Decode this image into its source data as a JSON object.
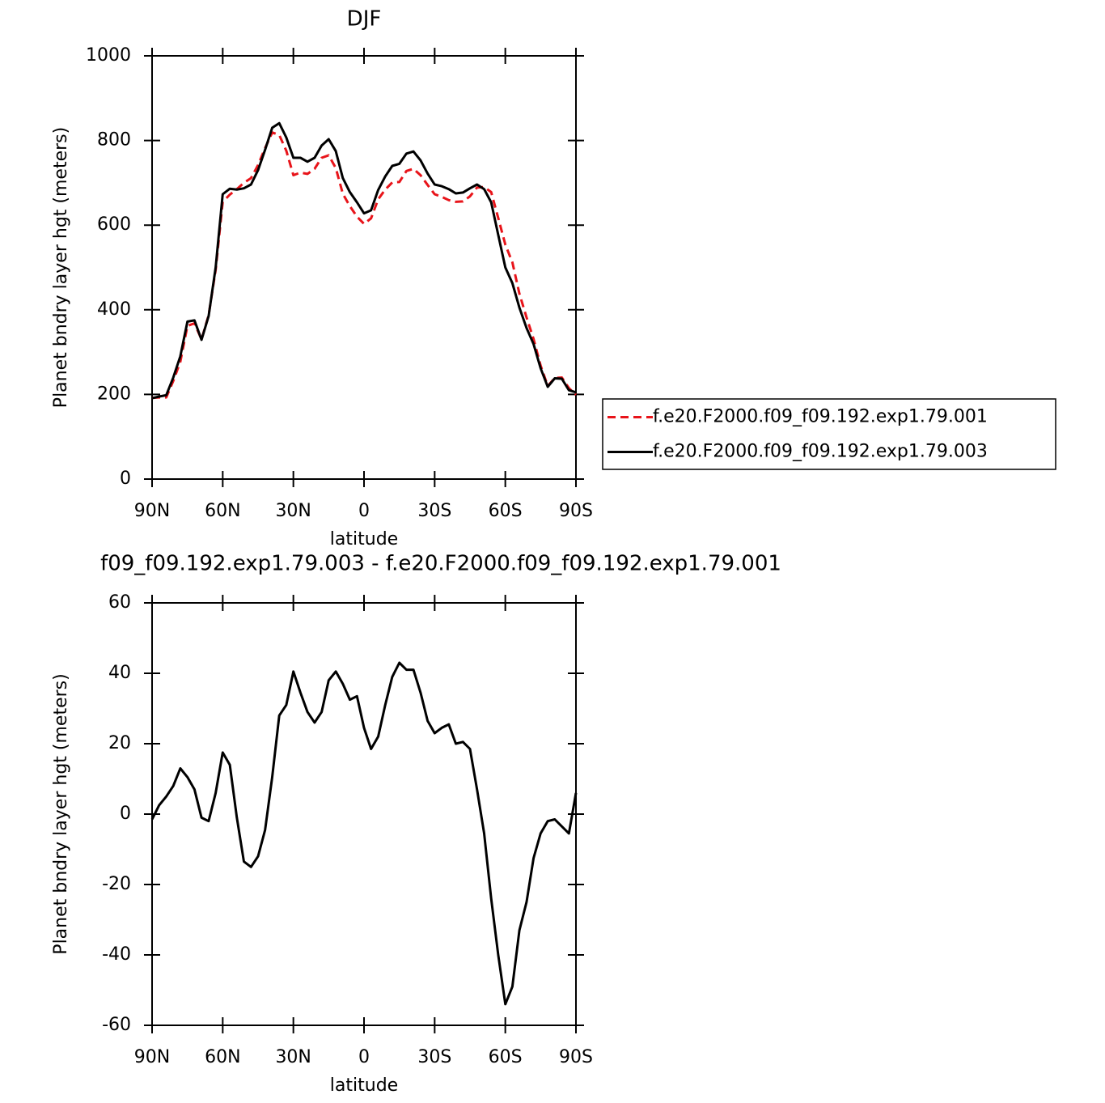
{
  "chart_data": [
    {
      "type": "line",
      "title": "DJF",
      "xlabel": "latitude",
      "ylabel": "Planet bndry layer hgt (meters)",
      "x": [
        90,
        87,
        84,
        81,
        78,
        75,
        72,
        69,
        66,
        63,
        60,
        57,
        54,
        51,
        48,
        45,
        42,
        39,
        36,
        33,
        30,
        27,
        24,
        21,
        18,
        15,
        12,
        9,
        6,
        3,
        0,
        -3,
        -6,
        -9,
        -12,
        -15,
        -18,
        -21,
        -24,
        -27,
        -30,
        -33,
        -36,
        -39,
        -42,
        -45,
        -48,
        -51,
        -54,
        -57,
        -60,
        -63,
        -66,
        -69,
        -72,
        -75,
        -78,
        -81,
        -84,
        -87,
        -90
      ],
      "series": [
        {
          "name": "f.e20.F2000.f09_f09.192.exp1.79.001",
          "color": "#e8141a",
          "line_style": "dashed",
          "values": [
            192,
            193,
            193,
            232,
            277,
            362,
            368,
            330,
            387,
            494,
            655,
            672,
            685,
            700,
            711,
            742,
            782,
            819,
            813,
            776,
            718,
            724,
            721,
            733,
            759,
            765,
            735,
            674,
            645,
            620,
            603,
            616,
            661,
            684,
            701,
            702,
            728,
            733,
            718,
            695,
            673,
            667,
            659,
            655,
            656,
            668,
            689,
            690,
            678,
            617,
            554,
            512,
            438,
            382,
            331,
            268,
            220,
            239,
            240,
            215,
            199
          ]
        },
        {
          "name": "f.e20.F2000.f09_f09.192.exp1.79.003",
          "color": "#000000",
          "line_style": "solid",
          "values": [
            191,
            195,
            198,
            240,
            290,
            372,
            375,
            329,
            385,
            500,
            673,
            686,
            684,
            687,
            696,
            730,
            778,
            830,
            841,
            807,
            759,
            759,
            750,
            759,
            788,
            803,
            775,
            711,
            678,
            654,
            628,
            635,
            683,
            715,
            740,
            745,
            769,
            774,
            753,
            722,
            696,
            692,
            685,
            675,
            677,
            687,
            696,
            685,
            654,
            577,
            500,
            463,
            405,
            357,
            319,
            262,
            218,
            238,
            237,
            210,
            205
          ]
        }
      ],
      "xlim": [
        90,
        -90
      ],
      "xticks": [
        {
          "value": 90,
          "label": "90N"
        },
        {
          "value": 60,
          "label": "60N"
        },
        {
          "value": 30,
          "label": "30N"
        },
        0,
        {
          "value": -30,
          "label": "30S"
        },
        {
          "value": -60,
          "label": "60S"
        },
        {
          "value": -90,
          "label": "90S"
        }
      ],
      "ylim": [
        0,
        1000
      ],
      "yticks": [
        0,
        200,
        400,
        600,
        800,
        1000
      ],
      "legend": "right"
    },
    {
      "type": "line",
      "title": "f09_f09.192.exp1.79.003 - f.e20.F2000.f09_f09.192.exp1.79.001",
      "xlabel": "latitude",
      "ylabel": "Planet bndry layer hgt (meters)",
      "x": [
        90,
        87,
        84,
        81,
        78,
        75,
        72,
        69,
        66,
        63,
        60,
        57,
        54,
        51,
        48,
        45,
        42,
        39,
        36,
        33,
        30,
        27,
        24,
        21,
        18,
        15,
        12,
        9,
        6,
        3,
        0,
        -3,
        -6,
        -9,
        -12,
        -15,
        -18,
        -21,
        -24,
        -27,
        -30,
        -33,
        -36,
        -39,
        -42,
        -45,
        -48,
        -51,
        -54,
        -57,
        -60,
        -63,
        -66,
        -69,
        -72,
        -75,
        -78,
        -81,
        -84,
        -87,
        -90
      ],
      "color": "#000000",
      "values": [
        -1.5,
        2.5,
        5,
        8,
        13,
        10.5,
        7,
        -1,
        -2,
        6,
        17.5,
        14,
        -1,
        -13.5,
        -15,
        -12,
        -4.5,
        10.5,
        28,
        31,
        40.5,
        34.5,
        29,
        26,
        29,
        38,
        40.5,
        37,
        32.5,
        33.5,
        24.5,
        18.5,
        22,
        31,
        39,
        43,
        41,
        41,
        34.5,
        26.5,
        23,
        24.5,
        25.5,
        20,
        20.5,
        18.5,
        7,
        -5.5,
        -24,
        -40,
        -54,
        -49,
        -33,
        -25,
        -12.5,
        -5.5,
        -2,
        -1.5,
        -3.5,
        -5.5,
        6
      ],
      "xlim": [
        90,
        -90
      ],
      "xticks": [
        {
          "value": 90,
          "label": "90N"
        },
        {
          "value": 60,
          "label": "60N"
        },
        {
          "value": 30,
          "label": "30N"
        },
        0,
        {
          "value": -30,
          "label": "30S"
        },
        {
          "value": -60,
          "label": "60S"
        },
        {
          "value": -90,
          "label": "90S"
        }
      ],
      "ylim": [
        -60,
        60
      ],
      "yticks": [
        -60,
        -40,
        -20,
        0,
        20,
        40,
        60
      ]
    }
  ]
}
